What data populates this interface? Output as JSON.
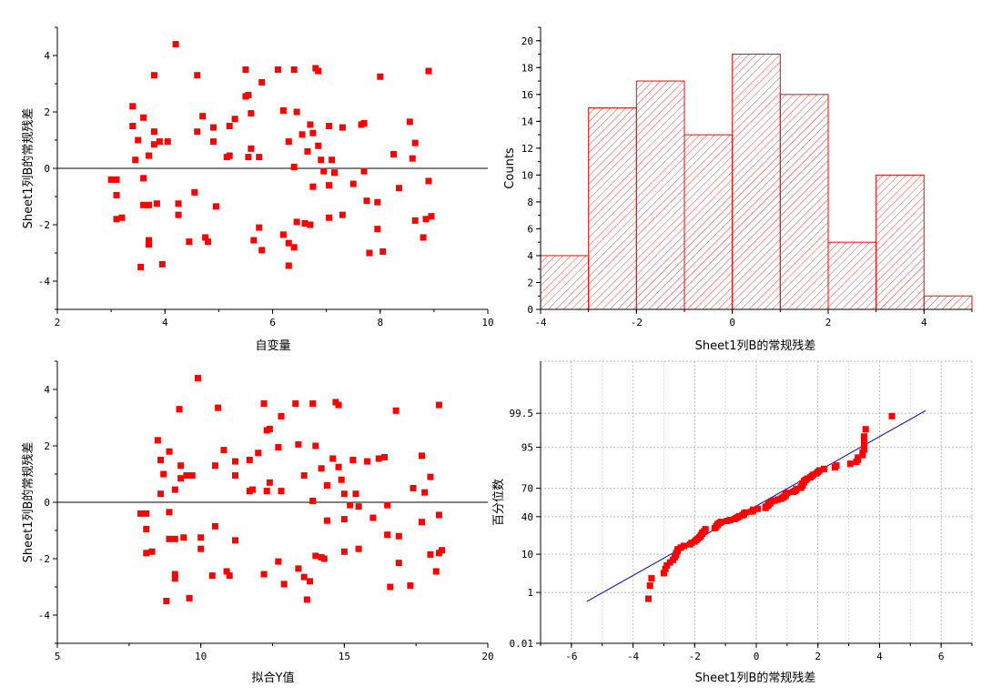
{
  "chart_data": [
    {
      "panel": "top-left",
      "type": "scatter",
      "xlabel": "自变量",
      "ylabel": "Sheet1列B的常规残差",
      "xlim": [
        2,
        10
      ],
      "ylim": [
        -5,
        5
      ],
      "xticks": [
        "2",
        "4",
        "6",
        "8",
        "10"
      ],
      "yticks": [
        "-4",
        "-2",
        "0",
        "2",
        "4"
      ],
      "reference_line_y": 0,
      "marker_color": "#ff0000",
      "points": [
        [
          4.2,
          4.4
        ],
        [
          4.6,
          3.3
        ],
        [
          3.8,
          3.3
        ],
        [
          5.5,
          3.5
        ],
        [
          6.1,
          3.5
        ],
        [
          6.4,
          3.5
        ],
        [
          6.8,
          3.55
        ],
        [
          6.85,
          3.45
        ],
        [
          8.0,
          3.25
        ],
        [
          8.9,
          3.45
        ],
        [
          5.8,
          3.05
        ],
        [
          3.4,
          2.2
        ],
        [
          3.6,
          1.8
        ],
        [
          3.4,
          1.5
        ],
        [
          3.5,
          1.0
        ],
        [
          3.9,
          0.95
        ],
        [
          4.05,
          0.95
        ],
        [
          3.8,
          0.85
        ],
        [
          3.8,
          1.3
        ],
        [
          3.7,
          0.45
        ],
        [
          3.45,
          0.3
        ],
        [
          4.6,
          1.3
        ],
        [
          4.7,
          1.85
        ],
        [
          4.9,
          1.45
        ],
        [
          4.9,
          0.95
        ],
        [
          5.2,
          1.5
        ],
        [
          5.3,
          1.75
        ],
        [
          5.5,
          2.55
        ],
        [
          5.55,
          2.6
        ],
        [
          5.6,
          1.95
        ],
        [
          5.15,
          0.4
        ],
        [
          5.2,
          0.45
        ],
        [
          5.6,
          0.7
        ],
        [
          5.75,
          0.4
        ],
        [
          6.2,
          2.05
        ],
        [
          6.45,
          2.0
        ],
        [
          6.3,
          0.95
        ],
        [
          6.4,
          0.05
        ],
        [
          6.55,
          1.2
        ],
        [
          6.7,
          1.55
        ],
        [
          6.75,
          1.25
        ],
        [
          6.65,
          0.6
        ],
        [
          6.85,
          0.8
        ],
        [
          6.9,
          0.3
        ],
        [
          6.95,
          -0.1
        ],
        [
          7.05,
          1.5
        ],
        [
          7.1,
          0.3
        ],
        [
          7.15,
          -0.15
        ],
        [
          7.3,
          1.45
        ],
        [
          7.65,
          1.55
        ],
        [
          7.7,
          1.6
        ],
        [
          7.7,
          -0.1
        ],
        [
          8.25,
          0.5
        ],
        [
          8.55,
          1.65
        ],
        [
          8.6,
          0.35
        ],
        [
          8.65,
          0.9
        ],
        [
          8.9,
          -0.45
        ],
        [
          3.0,
          -0.4
        ],
        [
          3.1,
          -0.4
        ],
        [
          3.1,
          -0.95
        ],
        [
          3.1,
          -1.8
        ],
        [
          3.2,
          -1.75
        ],
        [
          3.6,
          -0.35
        ],
        [
          3.6,
          -1.3
        ],
        [
          3.7,
          -1.3
        ],
        [
          3.85,
          -1.25
        ],
        [
          3.7,
          -2.55
        ],
        [
          3.7,
          -2.7
        ],
        [
          3.55,
          -3.5
        ],
        [
          3.95,
          -3.4
        ],
        [
          4.25,
          -1.25
        ],
        [
          4.25,
          -1.65
        ],
        [
          4.45,
          -2.6
        ],
        [
          4.55,
          -0.85
        ],
        [
          4.75,
          -2.45
        ],
        [
          4.8,
          -2.6
        ],
        [
          4.95,
          -1.35
        ],
        [
          5.55,
          0.4
        ],
        [
          5.65,
          -2.55
        ],
        [
          5.75,
          -2.1
        ],
        [
          5.8,
          -2.9
        ],
        [
          6.2,
          -2.35
        ],
        [
          6.3,
          -2.65
        ],
        [
          6.3,
          -3.45
        ],
        [
          6.4,
          -2.8
        ],
        [
          6.45,
          -1.9
        ],
        [
          6.6,
          -1.95
        ],
        [
          6.7,
          -2.0
        ],
        [
          6.75,
          -0.65
        ],
        [
          7.05,
          -0.6
        ],
        [
          7.05,
          -1.75
        ],
        [
          7.3,
          -1.65
        ],
        [
          7.5,
          -0.55
        ],
        [
          7.75,
          -1.15
        ],
        [
          7.8,
          -3.0
        ],
        [
          7.95,
          -1.2
        ],
        [
          7.95,
          -2.15
        ],
        [
          8.05,
          -2.95
        ],
        [
          8.35,
          -0.7
        ],
        [
          8.65,
          -1.85
        ],
        [
          8.8,
          -2.45
        ],
        [
          8.85,
          -1.8
        ],
        [
          8.95,
          -1.7
        ]
      ]
    },
    {
      "panel": "top-right",
      "type": "bar",
      "subtype": "histogram",
      "xlabel": "Sheet1列B的常规残差",
      "ylabel": "Counts",
      "xlim": [
        -4,
        5
      ],
      "ylim": [
        0,
        21
      ],
      "xticks": [
        "-4",
        "-2",
        "0",
        "2",
        "4"
      ],
      "yticks": [
        "0",
        "2",
        "4",
        "6",
        "8",
        "10",
        "12",
        "14",
        "16",
        "18",
        "20"
      ],
      "bin_edges": [
        -4,
        -3,
        -2,
        -1,
        0,
        1,
        2,
        3,
        4,
        5
      ],
      "values": [
        4,
        15,
        17,
        13,
        19,
        16,
        5,
        10,
        1
      ],
      "bar_color": "#ff0000",
      "fill": "diagonal hatch"
    },
    {
      "panel": "bottom-left",
      "type": "scatter",
      "xlabel": "拟合Y值",
      "ylabel": "Sheet1列B的常规残差",
      "xlim": [
        5,
        20
      ],
      "ylim": [
        -5,
        5
      ],
      "xticks": [
        "5",
        "10",
        "15",
        "20"
      ],
      "yticks": [
        "-4",
        "-2",
        "0",
        "2",
        "4"
      ],
      "reference_line_y": 0,
      "marker_color": "#ff0000",
      "points": [
        [
          9.9,
          4.4
        ],
        [
          10.6,
          3.35
        ],
        [
          9.25,
          3.3
        ],
        [
          12.2,
          3.5
        ],
        [
          13.3,
          3.5
        ],
        [
          13.9,
          3.5
        ],
        [
          14.7,
          3.55
        ],
        [
          14.8,
          3.45
        ],
        [
          16.8,
          3.25
        ],
        [
          18.3,
          3.45
        ],
        [
          12.8,
          3.05
        ],
        [
          8.5,
          2.2
        ],
        [
          8.9,
          1.8
        ],
        [
          8.6,
          1.5
        ],
        [
          8.7,
          1.0
        ],
        [
          9.5,
          0.95
        ],
        [
          9.7,
          0.95
        ],
        [
          9.3,
          0.85
        ],
        [
          9.3,
          1.3
        ],
        [
          9.1,
          0.45
        ],
        [
          8.6,
          0.3
        ],
        [
          10.5,
          1.3
        ],
        [
          10.8,
          1.85
        ],
        [
          11.2,
          1.45
        ],
        [
          11.2,
          0.95
        ],
        [
          11.7,
          1.5
        ],
        [
          12.0,
          1.75
        ],
        [
          12.3,
          2.55
        ],
        [
          12.4,
          2.6
        ],
        [
          12.7,
          1.95
        ],
        [
          11.7,
          0.4
        ],
        [
          11.8,
          0.45
        ],
        [
          12.4,
          0.7
        ],
        [
          12.8,
          0.4
        ],
        [
          13.4,
          2.05
        ],
        [
          14.0,
          2.0
        ],
        [
          13.6,
          0.95
        ],
        [
          13.9,
          0.05
        ],
        [
          14.2,
          1.2
        ],
        [
          14.6,
          1.55
        ],
        [
          14.8,
          1.25
        ],
        [
          14.4,
          0.6
        ],
        [
          14.9,
          0.8
        ],
        [
          15.0,
          0.3
        ],
        [
          15.2,
          -0.1
        ],
        [
          15.3,
          1.5
        ],
        [
          15.4,
          0.3
        ],
        [
          15.5,
          -0.15
        ],
        [
          15.8,
          1.45
        ],
        [
          16.2,
          1.55
        ],
        [
          16.4,
          1.6
        ],
        [
          16.5,
          -0.1
        ],
        [
          17.4,
          0.5
        ],
        [
          17.7,
          1.65
        ],
        [
          17.8,
          0.35
        ],
        [
          18.0,
          0.9
        ],
        [
          18.3,
          -0.45
        ],
        [
          7.9,
          -0.4
        ],
        [
          8.1,
          -0.4
        ],
        [
          8.1,
          -0.95
        ],
        [
          8.1,
          -1.8
        ],
        [
          8.3,
          -1.75
        ],
        [
          8.9,
          -0.35
        ],
        [
          8.9,
          -1.3
        ],
        [
          9.1,
          -1.3
        ],
        [
          9.4,
          -1.25
        ],
        [
          9.1,
          -2.55
        ],
        [
          9.1,
          -2.7
        ],
        [
          8.8,
          -3.5
        ],
        [
          9.6,
          -3.4
        ],
        [
          10.0,
          -1.25
        ],
        [
          10.0,
          -1.65
        ],
        [
          10.4,
          -2.6
        ],
        [
          10.5,
          -0.85
        ],
        [
          10.9,
          -2.45
        ],
        [
          11.0,
          -2.6
        ],
        [
          11.2,
          -1.35
        ],
        [
          12.3,
          0.4
        ],
        [
          12.2,
          -2.55
        ],
        [
          12.7,
          -2.1
        ],
        [
          12.9,
          -2.9
        ],
        [
          13.4,
          -2.35
        ],
        [
          13.6,
          -2.65
        ],
        [
          13.7,
          -3.45
        ],
        [
          13.8,
          -2.8
        ],
        [
          14.0,
          -1.9
        ],
        [
          14.2,
          -1.95
        ],
        [
          14.3,
          -2.0
        ],
        [
          14.4,
          -0.65
        ],
        [
          15.0,
          -0.6
        ],
        [
          15.0,
          -1.75
        ],
        [
          15.5,
          -1.65
        ],
        [
          16.0,
          -0.55
        ],
        [
          16.5,
          -1.15
        ],
        [
          16.6,
          -3.0
        ],
        [
          16.9,
          -1.2
        ],
        [
          16.9,
          -2.15
        ],
        [
          17.3,
          -2.95
        ],
        [
          17.7,
          -0.7
        ],
        [
          18.0,
          -1.85
        ],
        [
          18.2,
          -2.45
        ],
        [
          18.3,
          -1.8
        ],
        [
          18.4,
          -1.7
        ]
      ]
    },
    {
      "panel": "bottom-right",
      "type": "scatter",
      "subtype": "normal probability plot",
      "xlabel": "Sheet1列B的常规残差",
      "ylabel": "百分位数",
      "xlim": [
        -7,
        7
      ],
      "xticks": [
        "-6",
        "-4",
        "-2",
        "0",
        "2",
        "4",
        "6"
      ],
      "yticks": [
        "0.01",
        "1",
        "10",
        "40",
        "70",
        "95",
        "99.5"
      ],
      "y_scale": "probability",
      "grid": true,
      "fit_line": [
        [
          -5.5,
          0.5
        ],
        [
          5.5,
          99.6
        ]
      ],
      "fit_line_color": "#0000cc",
      "marker_color": "#ff0000",
      "residuals": [
        -3.5,
        -3.45,
        -3.4,
        -3.0,
        -2.95,
        -2.9,
        -2.8,
        -2.7,
        -2.65,
        -2.6,
        -2.6,
        -2.55,
        -2.55,
        -2.45,
        -2.35,
        -2.15,
        -2.1,
        -2.0,
        -1.95,
        -1.9,
        -1.85,
        -1.8,
        -1.8,
        -1.75,
        -1.75,
        -1.7,
        -1.65,
        -1.65,
        -1.35,
        -1.3,
        -1.3,
        -1.25,
        -1.25,
        -1.2,
        -1.15,
        -0.95,
        -0.85,
        -0.7,
        -0.65,
        -0.6,
        -0.55,
        -0.45,
        -0.4,
        -0.4,
        -0.35,
        -0.15,
        -0.1,
        -0.1,
        0.05,
        0.3,
        0.3,
        0.35,
        0.4,
        0.4,
        0.45,
        0.45,
        0.5,
        0.6,
        0.7,
        0.8,
        0.85,
        0.9,
        0.95,
        0.95,
        0.95,
        1.0,
        1.2,
        1.25,
        1.3,
        1.3,
        1.45,
        1.45,
        1.5,
        1.5,
        1.5,
        1.55,
        1.55,
        1.6,
        1.65,
        1.75,
        1.8,
        1.85,
        1.95,
        2.0,
        2.05,
        2.2,
        2.55,
        2.6,
        3.05,
        3.25,
        3.3,
        3.3,
        3.45,
        3.45,
        3.5,
        3.5,
        3.5,
        3.5,
        3.55,
        4.4
      ]
    }
  ]
}
